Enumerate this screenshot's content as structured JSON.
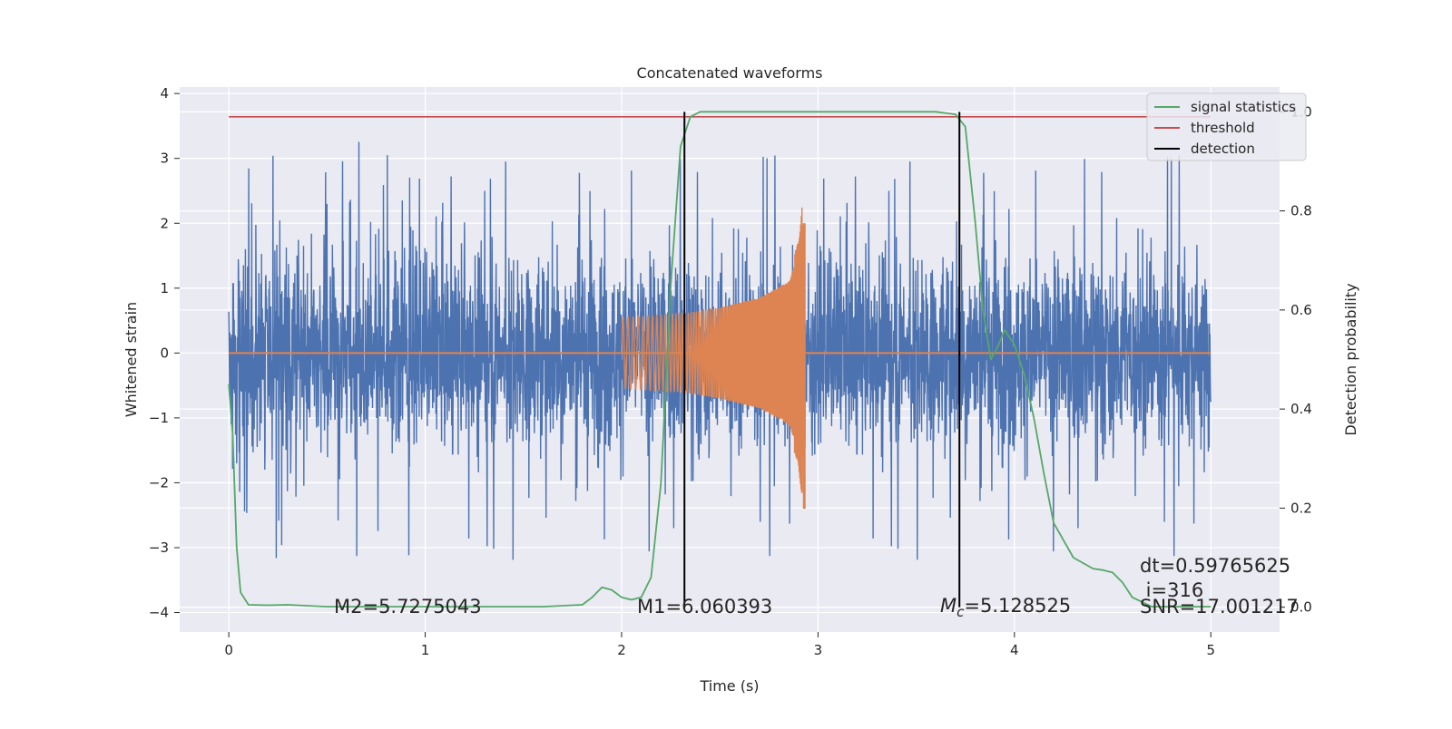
{
  "chart_data": {
    "type": "line",
    "title": "Concatenated waveforms",
    "xlabel": "Time (s)",
    "ylabel": "Whitened strain",
    "ylabel_right": "Detection probability",
    "xlim": [
      -0.25,
      5.35
    ],
    "ylim": [
      -4.3,
      4.1
    ],
    "ylim_right": [
      -0.05,
      1.05
    ],
    "x_ticks": [
      0,
      1,
      2,
      3,
      4,
      5
    ],
    "y_ticks": [
      -4,
      -3,
      -2,
      -1,
      0,
      1,
      2,
      3,
      4
    ],
    "y_ticks_right": [
      0.0,
      0.2,
      0.4,
      0.6,
      0.8,
      1.0
    ],
    "x_tick_labels": [
      "0",
      "1",
      "2",
      "3",
      "4",
      "5"
    ],
    "y_tick_labels": [
      "−4",
      "−3",
      "−2",
      "−1",
      "0",
      "1",
      "2",
      "3",
      "4"
    ],
    "y_tick_labels_right": [
      "0.0",
      "0.2",
      "0.4",
      "0.6",
      "0.8",
      "1.0"
    ],
    "grid": true,
    "legend_position": "top-right",
    "colors": {
      "background": "#eaeaf2",
      "grid": "#ffffff",
      "strain": "#4c72b0",
      "template": "#dd8452",
      "signal_statistics": "#55a868",
      "threshold": "#c44e52",
      "detection": "#000000"
    },
    "series": [
      {
        "name": "whitened strain noise",
        "axis": "left",
        "x_range": [
          0,
          5
        ],
        "band_core": [
          -0.85,
          0.65
        ],
        "peak_max": 3.75,
        "peak_min": -3.6
      },
      {
        "name": "chirp template",
        "axis": "left",
        "x_range": [
          2.0,
          2.93
        ],
        "envelope": [
          [
            2.0,
            0.55
          ],
          [
            2.3,
            0.6
          ],
          [
            2.5,
            0.7
          ],
          [
            2.7,
            0.85
          ],
          [
            2.85,
            1.1
          ],
          [
            2.9,
            1.5
          ],
          [
            2.92,
            2.0
          ],
          [
            2.93,
            0.0
          ]
        ]
      },
      {
        "name": "signal statistics",
        "axis": "right",
        "points": [
          [
            0.0,
            0.45
          ],
          [
            0.02,
            0.35
          ],
          [
            0.04,
            0.12
          ],
          [
            0.06,
            0.03
          ],
          [
            0.1,
            0.005
          ],
          [
            0.2,
            0.004
          ],
          [
            0.3,
            0.005
          ],
          [
            0.5,
            0.001
          ],
          [
            1.0,
            0.001
          ],
          [
            1.6,
            0.001
          ],
          [
            1.8,
            0.005
          ],
          [
            1.85,
            0.02
          ],
          [
            1.9,
            0.04
          ],
          [
            1.95,
            0.035
          ],
          [
            2.0,
            0.02
          ],
          [
            2.05,
            0.015
          ],
          [
            2.1,
            0.02
          ],
          [
            2.15,
            0.06
          ],
          [
            2.2,
            0.25
          ],
          [
            2.25,
            0.65
          ],
          [
            2.3,
            0.93
          ],
          [
            2.35,
            0.99
          ],
          [
            2.4,
            1.0
          ],
          [
            3.0,
            1.0
          ],
          [
            3.6,
            1.0
          ],
          [
            3.7,
            0.995
          ],
          [
            3.75,
            0.97
          ],
          [
            3.8,
            0.78
          ],
          [
            3.84,
            0.6
          ],
          [
            3.88,
            0.5
          ],
          [
            3.92,
            0.53
          ],
          [
            3.95,
            0.56
          ],
          [
            4.0,
            0.53
          ],
          [
            4.05,
            0.47
          ],
          [
            4.1,
            0.38
          ],
          [
            4.15,
            0.27
          ],
          [
            4.2,
            0.17
          ],
          [
            4.3,
            0.1
          ],
          [
            4.4,
            0.078
          ],
          [
            4.45,
            0.075
          ],
          [
            4.5,
            0.07
          ],
          [
            4.55,
            0.05
          ],
          [
            4.6,
            0.02
          ],
          [
            4.7,
            0.001
          ],
          [
            5.0,
            0.001
          ]
        ]
      },
      {
        "name": "threshold",
        "axis": "right",
        "points": [
          [
            0.0,
            0.99
          ],
          [
            5.0,
            0.99
          ]
        ]
      },
      {
        "name": "detection",
        "axis": "right",
        "vertical_lines": [
          2.32,
          3.72
        ],
        "y_range": [
          0.0,
          1.0
        ]
      }
    ],
    "legend": [
      {
        "label": "signal statistics",
        "color_key": "signal_statistics"
      },
      {
        "label": "threshold",
        "color_key": "threshold"
      },
      {
        "label": "detection",
        "color_key": "detection"
      }
    ],
    "annotations": {
      "m2": "M2=5.7275043",
      "m1": "M1=6.060393",
      "mc_symbol": "M",
      "mc_sub": "c",
      "mc_value": "=5.128525",
      "dt": "dt=0.59765625",
      "i": " i=316",
      "snr": "SNR=17.001217"
    }
  }
}
